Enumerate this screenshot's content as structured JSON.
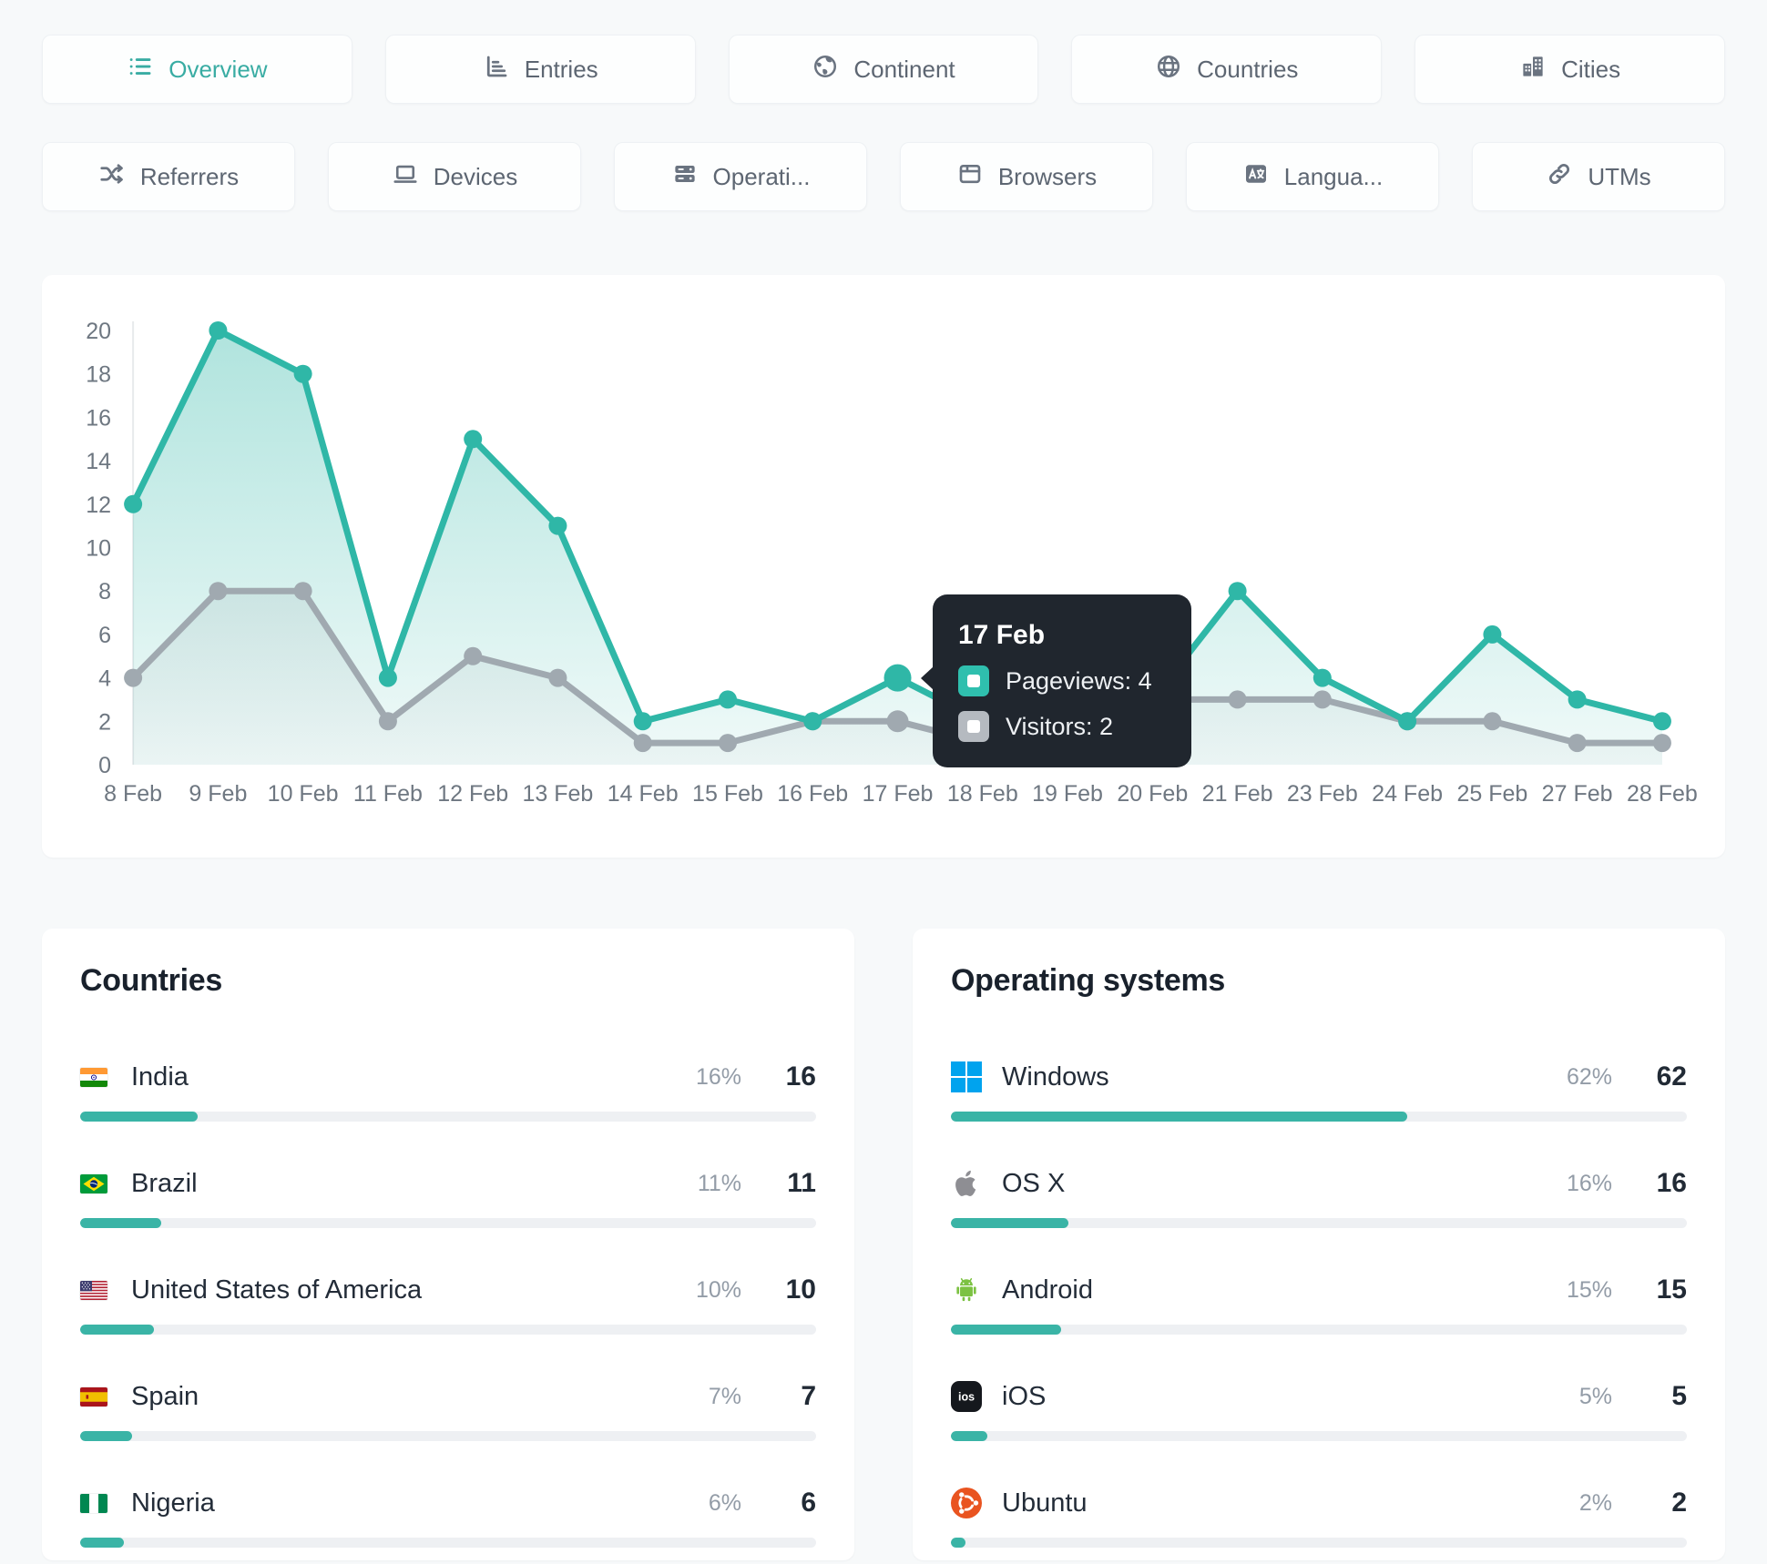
{
  "colors": {
    "accent": "#39aca3",
    "pageviews_line": "#2fb7a7",
    "visitors_line": "#a0a9b0",
    "bar_fill": "#3ab4a6",
    "tooltip_bg": "#20262e"
  },
  "tabs_row1": {
    "items": [
      {
        "icon": "list-icon",
        "label": "Overview",
        "active": true
      },
      {
        "icon": "bar-chart-icon",
        "label": "Entries",
        "active": false
      },
      {
        "icon": "earth-icon",
        "label": "Continent",
        "active": false
      },
      {
        "icon": "globe-icon",
        "label": "Countries",
        "active": false
      },
      {
        "icon": "city-icon",
        "label": "Cities",
        "active": false
      }
    ]
  },
  "tabs_row2": {
    "items": [
      {
        "icon": "shuffle-icon",
        "label": "Referrers",
        "active": false
      },
      {
        "icon": "laptop-icon",
        "label": "Devices",
        "active": false
      },
      {
        "icon": "server-icon",
        "label": "Operati...",
        "active": false
      },
      {
        "icon": "browser-icon",
        "label": "Browsers",
        "active": false
      },
      {
        "icon": "translate-icon",
        "label": "Langua...",
        "active": false
      },
      {
        "icon": "link-icon",
        "label": "UTMs",
        "active": false
      }
    ]
  },
  "chart_data": {
    "type": "line",
    "x": [
      "8 Feb",
      "9 Feb",
      "10 Feb",
      "11 Feb",
      "12 Feb",
      "13 Feb",
      "14 Feb",
      "15 Feb",
      "16 Feb",
      "17 Feb",
      "18 Feb",
      "19 Feb",
      "20 Feb",
      "21 Feb",
      "23 Feb",
      "24 Feb",
      "25 Feb",
      "27 Feb",
      "28 Feb"
    ],
    "series": [
      {
        "name": "Pageviews",
        "color": "#2fb7a7",
        "values": [
          12,
          20,
          18,
          4,
          15,
          11,
          2,
          3,
          2,
          4,
          2,
          2,
          3,
          8,
          4,
          2,
          6,
          3,
          2
        ]
      },
      {
        "name": "Visitors",
        "color": "#a0a9b0",
        "values": [
          4,
          8,
          8,
          2,
          5,
          4,
          1,
          1,
          2,
          2,
          1,
          1,
          3,
          3,
          3,
          2,
          2,
          1,
          1
        ]
      }
    ],
    "ylim": [
      0,
      20
    ],
    "ytick_step": 2,
    "grid": false,
    "legend": "none",
    "highlight_index": 9
  },
  "tooltip": {
    "title": "17 Feb",
    "rows": [
      {
        "marker_color": "#2fbfae",
        "text": "Pageviews: 4"
      },
      {
        "marker_color": "#b5bac0",
        "text": "Visitors: 2"
      }
    ]
  },
  "countries": {
    "title": "Countries",
    "rows": [
      {
        "icon": "india-flag",
        "name": "India",
        "percent": "16%",
        "value": 16,
        "pct": 16
      },
      {
        "icon": "brazil-flag",
        "name": "Brazil",
        "percent": "11%",
        "value": 11,
        "pct": 11
      },
      {
        "icon": "usa-flag",
        "name": "United States of America",
        "percent": "10%",
        "value": 10,
        "pct": 10
      },
      {
        "icon": "spain-flag",
        "name": "Spain",
        "percent": "7%",
        "value": 7,
        "pct": 7
      },
      {
        "icon": "nigeria-flag",
        "name": "Nigeria",
        "percent": "6%",
        "value": 6,
        "pct": 6
      }
    ]
  },
  "operating_systems": {
    "title": "Operating systems",
    "rows": [
      {
        "icon": "windows-icon",
        "name": "Windows",
        "percent": "62%",
        "value": 62,
        "pct": 62
      },
      {
        "icon": "apple-icon",
        "name": "OS X",
        "percent": "16%",
        "value": 16,
        "pct": 16
      },
      {
        "icon": "android-icon",
        "name": "Android",
        "percent": "15%",
        "value": 15,
        "pct": 15
      },
      {
        "icon": "ios-icon",
        "name": "iOS",
        "percent": "5%",
        "value": 5,
        "pct": 5
      },
      {
        "icon": "ubuntu-icon",
        "name": "Ubuntu",
        "percent": "2%",
        "value": 2,
        "pct": 2
      }
    ]
  }
}
